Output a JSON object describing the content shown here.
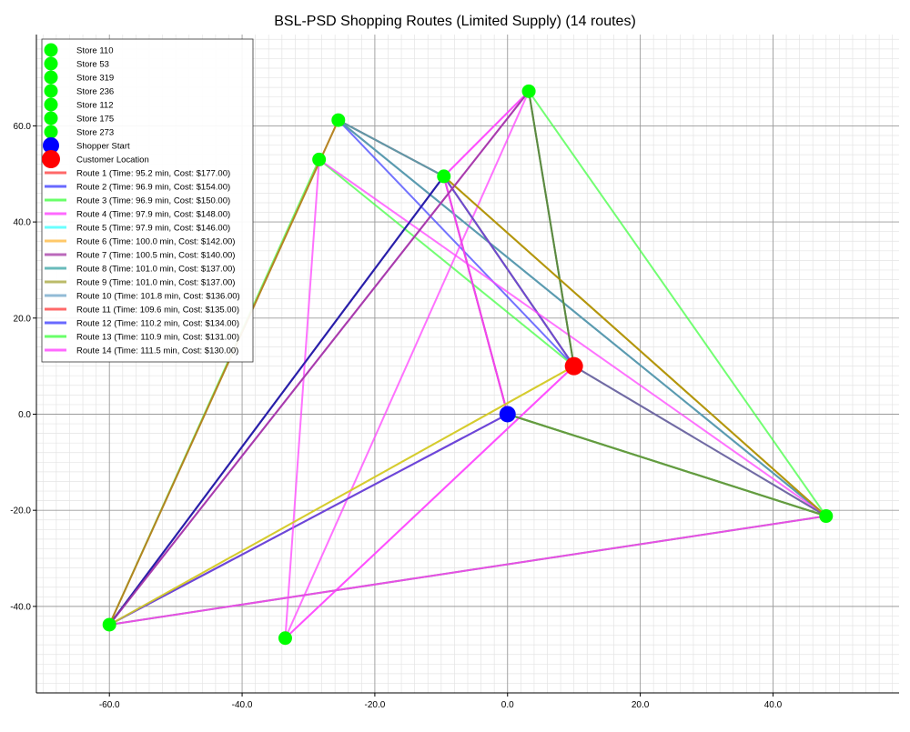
{
  "chart_data": {
    "type": "line",
    "title": "BSL-PSD Shopping Routes (Limited Supply) (14 routes)",
    "xlabel": "",
    "ylabel": "",
    "xlim": [
      -71,
      59
    ],
    "ylim": [
      -58,
      79
    ],
    "x_ticks": [
      -60,
      -40,
      -20,
      0,
      20,
      40
    ],
    "y_ticks": [
      -40,
      -20,
      0,
      20,
      40,
      60
    ],
    "x_tick_labels": [
      "-60.0",
      "-40.0",
      "-20.0",
      "0.0",
      "20.0",
      "40.0"
    ],
    "y_tick_labels": [
      "-40.0",
      "-20.0",
      "0.0",
      "20.0",
      "40.0",
      "60.0"
    ],
    "grid": true,
    "legend_position": "top-left",
    "stores": [
      {
        "name": "Store 110",
        "x": -60.0,
        "y": -43.8
      },
      {
        "name": "Store 53",
        "x": -25.5,
        "y": 61.2
      },
      {
        "name": "Store 319",
        "x": 3.2,
        "y": 67.2
      },
      {
        "name": "Store 236",
        "x": -28.4,
        "y": 53.0
      },
      {
        "name": "Store 112",
        "x": -9.6,
        "y": 49.5
      },
      {
        "name": "Store 175",
        "x": 48.0,
        "y": -21.2
      },
      {
        "name": "Store 273",
        "x": -33.5,
        "y": -46.6
      }
    ],
    "shopper_start": {
      "name": "Shopper Start",
      "x": 0.0,
      "y": 0.0
    },
    "customer_location": {
      "name": "Customer Location",
      "x": 10.0,
      "y": 10.0
    },
    "colors": {
      "store": "#00ff00",
      "shopper": "#0000ff",
      "customer": "#ff0000"
    },
    "series": [
      {
        "name": "Route 1 (Time: 95.2 min, Cost: $177.00)",
        "color": "#ff4444",
        "path": [
          [
            0.0,
            0.0
          ],
          [
            -9.6,
            49.5
          ],
          [
            -25.5,
            61.2
          ],
          [
            -9.6,
            49.5
          ],
          [
            10.0,
            10.0
          ]
        ]
      },
      {
        "name": "Route 2 (Time: 96.9 min, Cost: $154.00)",
        "color": "#4444ff",
        "path": [
          [
            0.0,
            0.0
          ],
          [
            -60.0,
            -43.8
          ],
          [
            -9.6,
            49.5
          ],
          [
            -25.5,
            61.2
          ],
          [
            10.0,
            10.0
          ]
        ]
      },
      {
        "name": "Route 3 (Time: 96.9 min, Cost: $150.00)",
        "color": "#44ff44",
        "path": [
          [
            0.0,
            0.0
          ],
          [
            48.0,
            -21.2
          ],
          [
            -60.0,
            -43.8
          ],
          [
            -28.4,
            53.0
          ],
          [
            10.0,
            10.0
          ]
        ]
      },
      {
        "name": "Route 4 (Time: 97.9 min, Cost: $148.00)",
        "color": "#ff44ff",
        "path": [
          [
            0.0,
            0.0
          ],
          [
            -9.6,
            49.5
          ],
          [
            3.2,
            67.2
          ],
          [
            -33.5,
            -46.6
          ],
          [
            10.0,
            10.0
          ]
        ]
      },
      {
        "name": "Route 5 (Time: 97.9 min, Cost: $146.00)",
        "color": "#44ffff",
        "path": [
          [
            0.0,
            0.0
          ],
          [
            48.0,
            -21.2
          ],
          [
            -25.5,
            61.2
          ],
          [
            -9.6,
            49.5
          ],
          [
            10.0,
            10.0
          ]
        ]
      },
      {
        "name": "Route 6 (Time: 100.0 min, Cost: $142.00)",
        "color": "#ffbb44",
        "path": [
          [
            10.0,
            10.0
          ],
          [
            -60.0,
            -43.8
          ],
          [
            -25.5,
            61.2
          ],
          [
            -9.6,
            49.5
          ],
          [
            48.0,
            -21.2
          ],
          [
            0.0,
            0.0
          ]
        ]
      },
      {
        "name": "Route 7 (Time: 100.5 min, Cost: $140.00)",
        "color": "#aa44aa",
        "path": [
          [
            0.0,
            0.0
          ],
          [
            -9.6,
            49.5
          ],
          [
            -25.5,
            61.2
          ],
          [
            48.0,
            -21.2
          ],
          [
            -60.0,
            -43.8
          ],
          [
            3.2,
            67.2
          ],
          [
            10.0,
            10.0
          ]
        ]
      },
      {
        "name": "Route 8 (Time: 101.0 min, Cost: $137.00)",
        "color": "#44aaaa",
        "path": [
          [
            0.0,
            0.0
          ],
          [
            48.0,
            -21.2
          ],
          [
            -25.5,
            61.2
          ],
          [
            -9.6,
            49.5
          ],
          [
            10.0,
            10.0
          ]
        ]
      },
      {
        "name": "Route 9 (Time: 101.0 min, Cost: $137.00)",
        "color": "#aaaa44",
        "path": [
          [
            0.0,
            0.0
          ],
          [
            48.0,
            -21.2
          ],
          [
            -9.6,
            49.5
          ],
          [
            10.0,
            10.0
          ]
        ]
      },
      {
        "name": "Route 10 (Time: 101.8 min, Cost: $136.00)",
        "color": "#77aacc",
        "path": [
          [
            0.0,
            0.0
          ],
          [
            48.0,
            -21.2
          ],
          [
            10.0,
            10.0
          ]
        ]
      },
      {
        "name": "Route 11 (Time: 109.6 min, Cost: $135.00)",
        "color": "#ff4444",
        "path": [
          [
            0.0,
            0.0
          ],
          [
            -60.0,
            -43.8
          ],
          [
            -9.6,
            49.5
          ],
          [
            10.0,
            10.0
          ]
        ]
      },
      {
        "name": "Route 12 (Time: 110.2 min, Cost: $134.00)",
        "color": "#4444ff",
        "path": [
          [
            0.0,
            0.0
          ],
          [
            -60.0,
            -43.8
          ],
          [
            -9.6,
            49.5
          ],
          [
            10.0,
            10.0
          ]
        ]
      },
      {
        "name": "Route 13 (Time: 110.9 min, Cost: $131.00)",
        "color": "#44ff44",
        "path": [
          [
            0.0,
            0.0
          ],
          [
            48.0,
            -21.2
          ],
          [
            3.2,
            67.2
          ],
          [
            10.0,
            10.0
          ]
        ]
      },
      {
        "name": "Route 14 (Time: 111.5 min, Cost: $130.00)",
        "color": "#ff44ff",
        "path": [
          [
            10.0,
            10.0
          ],
          [
            -33.5,
            -46.6
          ],
          [
            -28.4,
            53.0
          ],
          [
            48.0,
            -21.2
          ],
          [
            -60.0,
            -43.8
          ],
          [
            3.2,
            67.2
          ],
          [
            -9.6,
            49.5
          ],
          [
            0.0,
            0.0
          ]
        ]
      }
    ],
    "overlay_paths": [
      {
        "color": "#6b5b9a",
        "path": [
          [
            48.0,
            -21.2
          ],
          [
            10.0,
            10.0
          ]
        ]
      },
      {
        "color": "#6b8b3a",
        "path": [
          [
            0.0,
            0.0
          ],
          [
            48.0,
            -21.2
          ]
        ]
      },
      {
        "color": "#5a7a3a",
        "path": [
          [
            3.2,
            67.2
          ],
          [
            10.0,
            10.0
          ]
        ]
      },
      {
        "color": "#1a1aa0",
        "path": [
          [
            -60.0,
            -43.8
          ],
          [
            -9.6,
            49.5
          ]
        ]
      },
      {
        "color": "#b09000",
        "path": [
          [
            -9.6,
            49.5
          ],
          [
            48.0,
            -21.2
          ]
        ]
      },
      {
        "color": "#a8781a",
        "path": [
          [
            -60.0,
            -43.8
          ],
          [
            -25.5,
            61.2
          ]
        ]
      },
      {
        "color": "#cccc22",
        "path": [
          [
            -60.0,
            -43.8
          ],
          [
            10.0,
            10.0
          ]
        ]
      },
      {
        "color": "#9a3aa0",
        "path": [
          [
            -60.0,
            -43.8
          ],
          [
            3.2,
            67.2
          ]
        ]
      }
    ]
  }
}
